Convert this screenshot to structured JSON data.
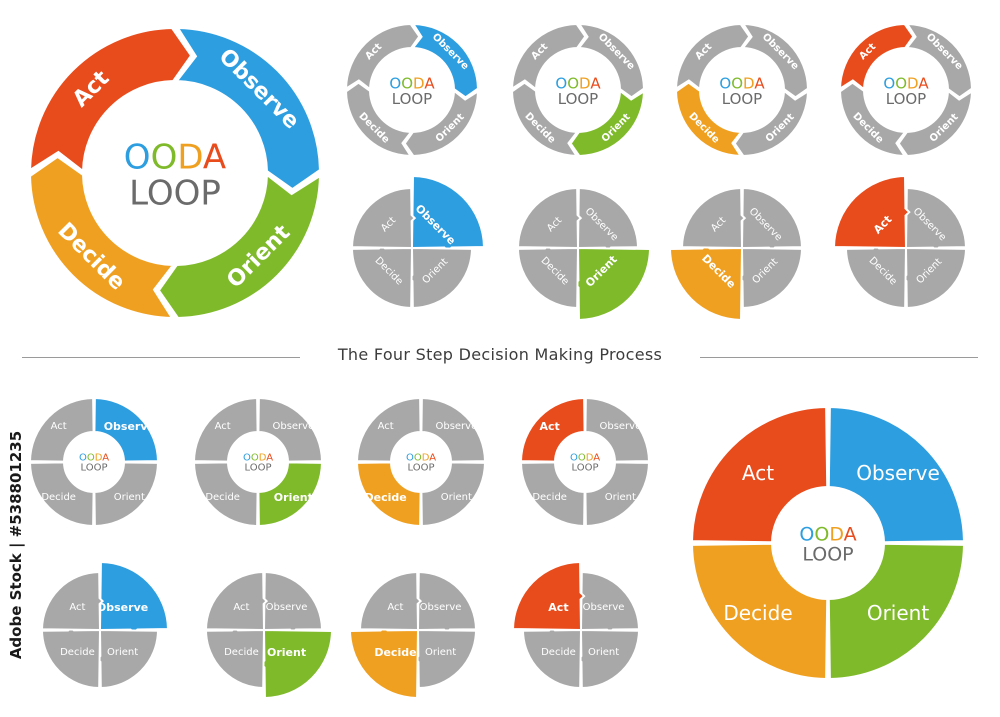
{
  "title": {
    "part1": "OODA",
    "part2": "LOOP",
    "letter_colors": [
      "#2d9ee0",
      "#7fba2b",
      "#f0a020",
      "#e84c1c"
    ]
  },
  "steps": {
    "observe": "Observe",
    "orient": "Orient",
    "decide": "Decide",
    "act": "Act"
  },
  "colors": {
    "observe": "#2d9ee0",
    "orient": "#7fba2b",
    "decide": "#f0a020",
    "act": "#e84c1c",
    "inactive": "#a8a8a8",
    "title_gray": "#6b6b6b"
  },
  "caption": "The Four Step Decision Making Process",
  "stock_id": "Adobe Stock | #538801235",
  "variants": {
    "ring_small_highlight": [
      "observe",
      "orient",
      "decide",
      "act"
    ],
    "quad_top_highlight": [
      "observe",
      "orient",
      "decide",
      "act"
    ],
    "quad_bottom_highlight": [
      "observe",
      "orient",
      "decide",
      "act"
    ]
  }
}
